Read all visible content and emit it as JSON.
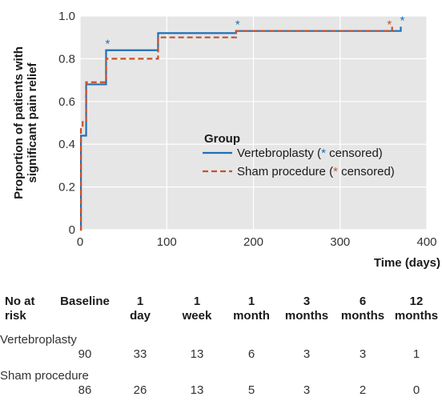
{
  "chart_data": {
    "type": "line",
    "step": true,
    "ylabel": "Proportion of patients with significant pain relief",
    "ylabel_lines": [
      "Proportion of patients with",
      "significant pain relief"
    ],
    "xlabel": "Time (days)",
    "xlim": [
      0,
      400
    ],
    "ylim": [
      0,
      1.0
    ],
    "xticks": [
      0,
      100,
      200,
      300,
      400
    ],
    "yticks": [
      0,
      0.2,
      0.4,
      0.6,
      0.8,
      1.0
    ],
    "ytick_labels": [
      "0",
      "0.2",
      "0.4",
      "0.6",
      "0.8",
      "1.0"
    ],
    "legend": {
      "title": "Group",
      "placement": "center-right",
      "censored_marker": "*",
      "entries": [
        {
          "pre": "Vertebroplasty (",
          "post": " censored)"
        },
        {
          "pre": "Sham procedure (",
          "post": " censored)"
        }
      ]
    },
    "series": [
      {
        "name": "Vertebroplasty",
        "color": "#1f6fb5",
        "dashed": false,
        "points": [
          [
            0,
            0
          ],
          [
            1,
            0.44
          ],
          [
            7,
            0.68
          ],
          [
            30,
            0.84
          ],
          [
            90,
            0.92
          ],
          [
            180,
            0.93
          ],
          [
            370,
            0.95
          ]
        ],
        "censored": [
          [
            30,
            0.84
          ],
          [
            180,
            0.93
          ],
          [
            370,
            0.95
          ]
        ]
      },
      {
        "name": "Sham procedure",
        "color": "#c8502a",
        "dashed": true,
        "points": [
          [
            0,
            0
          ],
          [
            1,
            0.48
          ],
          [
            3,
            0.51
          ],
          [
            7,
            0.69
          ],
          [
            30,
            0.8
          ],
          [
            90,
            0.9
          ],
          [
            180,
            0.93
          ],
          [
            360,
            0.95
          ]
        ],
        "censored": [
          [
            355,
            0.93
          ]
        ]
      }
    ]
  },
  "risk_table": {
    "header_label": [
      "No at",
      "risk"
    ],
    "baseline_label": "Baseline",
    "columns": [
      {
        "top": "1",
        "bottom": "day"
      },
      {
        "top": "1",
        "bottom": "week"
      },
      {
        "top": "1",
        "bottom": "month"
      },
      {
        "top": "3",
        "bottom": "months"
      },
      {
        "top": "6",
        "bottom": "months"
      },
      {
        "top": "12",
        "bottom": "months"
      }
    ],
    "rows": [
      {
        "label": "Vertebroplasty",
        "baseline": "90",
        "values": [
          "33",
          "13",
          "6",
          "3",
          "3",
          "1"
        ]
      },
      {
        "label": "Sham procedure",
        "baseline": "86",
        "values": [
          "26",
          "13",
          "5",
          "3",
          "2",
          "0"
        ]
      }
    ]
  }
}
